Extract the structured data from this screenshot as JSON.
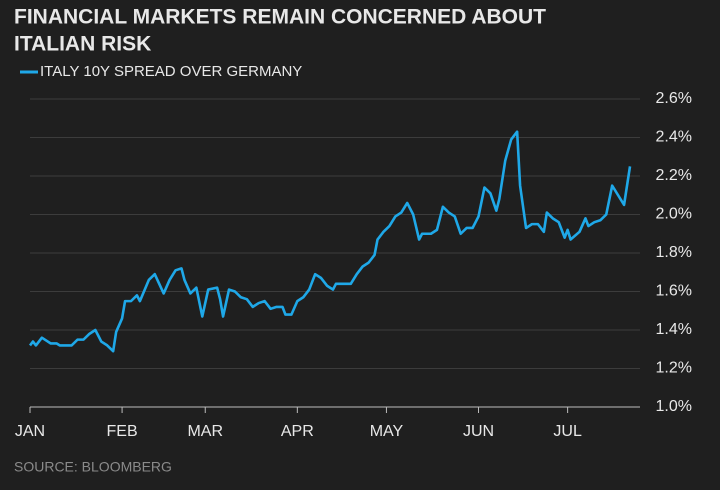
{
  "chart_data": {
    "type": "line",
    "title": [
      "FINANCIAL MARKETS REMAIN CONCERNED ABOUT",
      "ITALIAN RISK"
    ],
    "source": "SOURCE: BLOOMBERG",
    "legend": "top-left",
    "grid": true,
    "series": [
      {
        "name": "ITALY 10Y SPREAD OVER GERMANY",
        "color": "#1fa8e8",
        "x": [
          0,
          1,
          2,
          4,
          6,
          7,
          9,
          10,
          12,
          14,
          16,
          18,
          20,
          22,
          23,
          24,
          26,
          28,
          29,
          31,
          32,
          34,
          36,
          37,
          40,
          42,
          45,
          47,
          49,
          51,
          52,
          54,
          56,
          58,
          60,
          63,
          64,
          65,
          67,
          69,
          71,
          73,
          75,
          77,
          79,
          81,
          83,
          85,
          86,
          88,
          90,
          92,
          94,
          96,
          98,
          100,
          102,
          103,
          105,
          108,
          110,
          112,
          114,
          116,
          117,
          119,
          121,
          123,
          125,
          127,
          129,
          131,
          132,
          135,
          137,
          139,
          141,
          143,
          145,
          147,
          149,
          151,
          153,
          155,
          157,
          158,
          160,
          162,
          164,
          165,
          167,
          169,
          171,
          173,
          174,
          176,
          178,
          180,
          181,
          182,
          185,
          187,
          188,
          190,
          192,
          194,
          196,
          198,
          200,
          202
        ],
        "values": [
          1.32,
          1.34,
          1.32,
          1.36,
          1.34,
          1.33,
          1.33,
          1.32,
          1.32,
          1.32,
          1.35,
          1.35,
          1.38,
          1.4,
          1.37,
          1.34,
          1.32,
          1.29,
          1.39,
          1.46,
          1.55,
          1.55,
          1.58,
          1.55,
          1.66,
          1.69,
          1.59,
          1.66,
          1.71,
          1.72,
          1.66,
          1.59,
          1.62,
          1.47,
          1.61,
          1.62,
          1.56,
          1.47,
          1.61,
          1.6,
          1.57,
          1.56,
          1.52,
          1.54,
          1.55,
          1.51,
          1.52,
          1.52,
          1.48,
          1.48,
          1.55,
          1.57,
          1.61,
          1.69,
          1.67,
          1.63,
          1.61,
          1.64,
          1.64,
          1.64,
          1.69,
          1.73,
          1.75,
          1.79,
          1.87,
          1.91,
          1.94,
          1.99,
          2.01,
          2.06,
          2.0,
          1.87,
          1.9,
          1.9,
          1.92,
          2.04,
          2.01,
          1.99,
          1.9,
          1.93,
          1.93,
          1.99,
          2.14,
          2.11,
          2.02,
          2.08,
          2.28,
          2.39,
          2.43,
          2.15,
          1.93,
          1.95,
          1.95,
          1.91,
          2.01,
          1.98,
          1.96,
          1.88,
          1.92,
          1.87,
          1.91,
          1.98,
          1.94,
          1.96,
          1.97,
          2.0,
          2.15,
          2.1,
          2.05,
          2.25
        ]
      }
    ],
    "xlim": [
      0,
      202
    ],
    "xticks": [
      {
        "value": 0,
        "label": "JAN"
      },
      {
        "value": 31,
        "label": "FEB"
      },
      {
        "value": 59,
        "label": "MAR"
      },
      {
        "value": 90,
        "label": "APR"
      },
      {
        "value": 120,
        "label": "MAY"
      },
      {
        "value": 151,
        "label": "JUN"
      },
      {
        "value": 181,
        "label": "JUL"
      }
    ],
    "ylim": [
      1.0,
      2.6
    ],
    "yticks": [
      {
        "value": 1.0,
        "label": "1.0%"
      },
      {
        "value": 1.2,
        "label": "1.2%"
      },
      {
        "value": 1.4,
        "label": "1.4%"
      },
      {
        "value": 1.6,
        "label": "1.6%"
      },
      {
        "value": 1.8,
        "label": "1.8%"
      },
      {
        "value": 2.0,
        "label": "2.0%"
      },
      {
        "value": 2.2,
        "label": "2.2%"
      },
      {
        "value": 2.4,
        "label": "2.4%"
      },
      {
        "value": 2.6,
        "label": "2.6%"
      }
    ]
  }
}
